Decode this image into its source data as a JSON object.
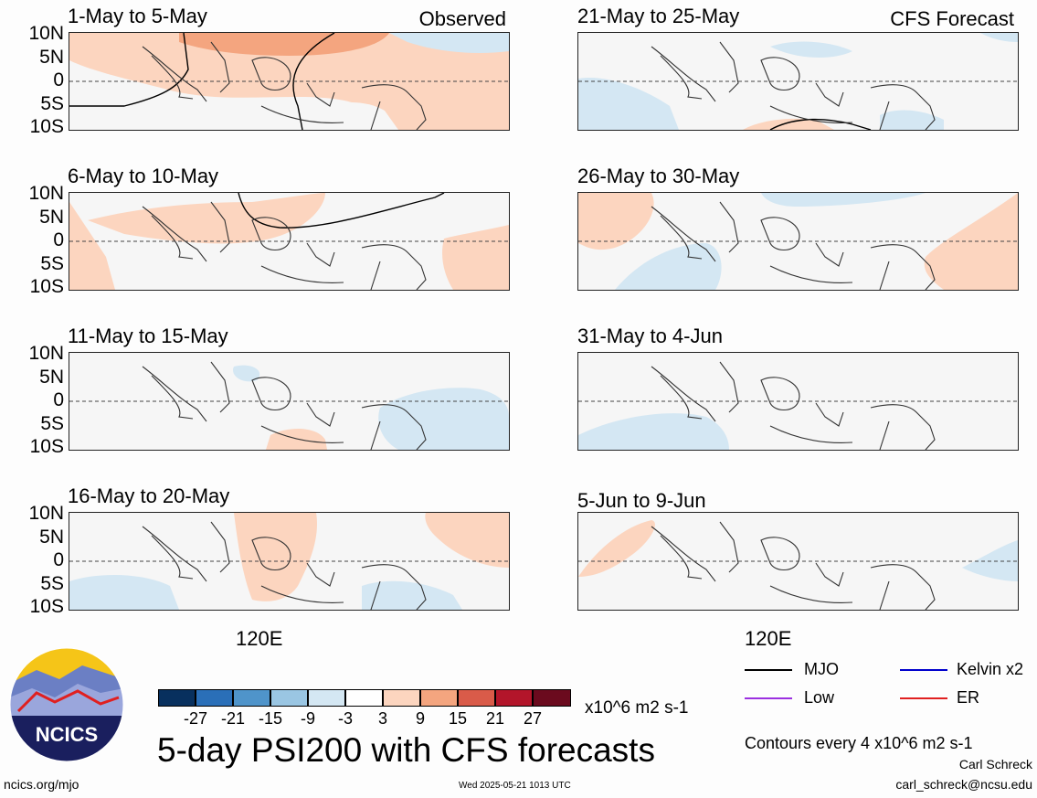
{
  "left_column": {
    "header": "Observed",
    "lon_label": "120E",
    "panels": [
      {
        "title": "1-May to 5-May"
      },
      {
        "title": "6-May to 10-May"
      },
      {
        "title": "11-May to 15-May"
      },
      {
        "title": "16-May to 20-May"
      }
    ]
  },
  "right_column": {
    "header": "CFS Forecast",
    "lon_label": "120E",
    "panels": [
      {
        "title": "21-May to 25-May"
      },
      {
        "title": "26-May to 30-May"
      },
      {
        "title": "31-May to 4-Jun"
      },
      {
        "title": "5-Jun to 9-Jun"
      }
    ]
  },
  "lat_labels": [
    "10N",
    "5N",
    "0",
    "5S",
    "10S"
  ],
  "colorbar": {
    "ticks": [
      "-27",
      "-21",
      "-15",
      "-9",
      "-3",
      "3",
      "9",
      "15",
      "21",
      "27"
    ],
    "colors": [
      "#08305e",
      "#2a6fb8",
      "#4f94ca",
      "#9ac6e3",
      "#d4e7f3",
      "#ffffff",
      "#fcd5bf",
      "#f4a57f",
      "#d95b49",
      "#b3152a",
      "#6b0a1e"
    ],
    "units": "x10^6 m2 s-1"
  },
  "main_title": "5-day PSI200 with CFS forecasts",
  "legend": {
    "items": [
      {
        "label": "MJO",
        "color": "#000000"
      },
      {
        "label": "Kelvin x2",
        "color": "#0000cc"
      },
      {
        "label": "Low",
        "color": "#9b30e0"
      },
      {
        "label": "ER",
        "color": "#e02020"
      }
    ],
    "contour_note": "Contours every 4 x10^6 m2 s-1"
  },
  "logo_text": "NCICS",
  "footer": {
    "site": "ncics.org/mjo",
    "timestamp": "Wed 2025-05-21 1013 UTC",
    "author": "Carl Schreck",
    "email": "carl_schreck@ncsu.edu"
  }
}
